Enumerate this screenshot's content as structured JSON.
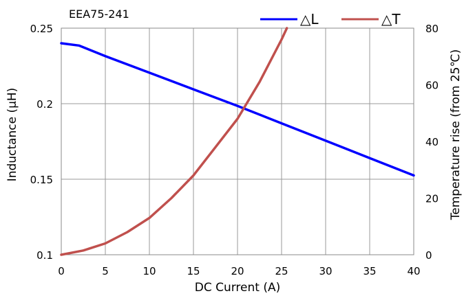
{
  "chart_data": {
    "type": "line",
    "title": "EEA75-241",
    "xlabel": "DC Current (A)",
    "ylabel_left": "Inductance (μH)",
    "ylabel_right": "Temperature rise (from 25℃)",
    "xlim": [
      0,
      40
    ],
    "ylim_left": [
      0.1,
      0.25
    ],
    "ylim_right": [
      0,
      80
    ],
    "x_ticks": [
      "0",
      "5",
      "10",
      "15",
      "20",
      "25",
      "30",
      "35",
      "40"
    ],
    "y_left_ticks": [
      "0.1",
      "0.15",
      "0.2",
      "0.25"
    ],
    "y_right_ticks": [
      "0",
      "20",
      "40",
      "60",
      "80"
    ],
    "grid": true,
    "legend_position": "top-right",
    "series": [
      {
        "name": "△L",
        "axis": "left",
        "color": "#0000ff",
        "points": [
          [
            0,
            0.24
          ],
          [
            2,
            0.2385
          ],
          [
            5,
            0.2315
          ],
          [
            10,
            0.2205
          ],
          [
            15,
            0.2095
          ],
          [
            20,
            0.1985
          ],
          [
            25,
            0.187
          ],
          [
            30,
            0.1755
          ],
          [
            35,
            0.164
          ],
          [
            40,
            0.1525
          ]
        ]
      },
      {
        "name": "△T",
        "axis": "right",
        "color": "#c0504d",
        "points": [
          [
            0,
            0
          ],
          [
            2.5,
            1.5
          ],
          [
            5,
            4
          ],
          [
            7.5,
            8
          ],
          [
            10,
            13
          ],
          [
            12.5,
            20
          ],
          [
            15,
            28
          ],
          [
            17.5,
            38
          ],
          [
            20,
            48
          ],
          [
            22.5,
            61
          ],
          [
            25,
            76
          ],
          [
            25.6,
            80
          ]
        ]
      }
    ]
  }
}
